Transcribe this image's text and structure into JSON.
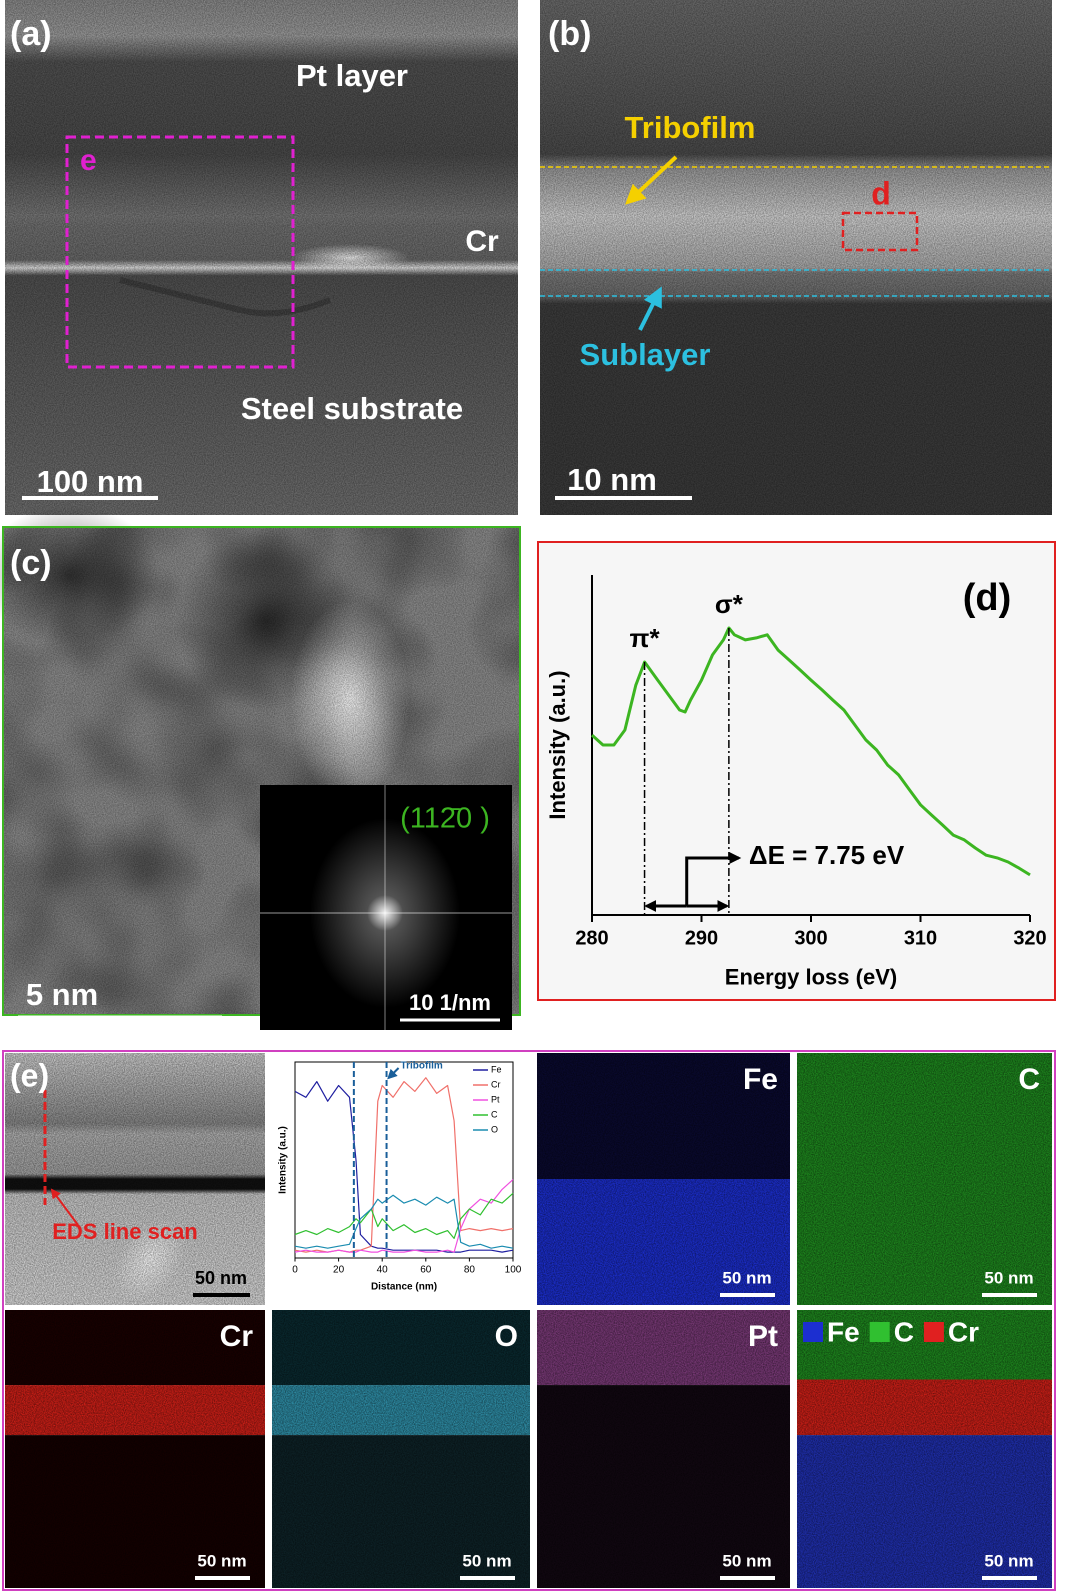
{
  "figure": {
    "a": {
      "label": "(a)",
      "pt_layer": "Pt layer",
      "box": "e",
      "cr": "Cr",
      "substrate": "Steel substrate",
      "scale_bar": "100 nm"
    },
    "b": {
      "label": "(b)",
      "tribofilm": "Tribofilm",
      "box": "d",
      "sublayer": "Sublayer",
      "scale_bar": "10 nm"
    },
    "c": {
      "label": "(c)",
      "fft_index": "(112̄0 )",
      "scale_bar": "5 nm",
      "fft_scale_bar": "10 1/nm"
    },
    "e": {
      "label": "(e)",
      "line_scan": "EDS line scan",
      "scale_bar": "50 nm",
      "maps": [
        {
          "element": "Fe",
          "scale_bar": "50 nm"
        },
        {
          "element": "C",
          "scale_bar": "50 nm"
        },
        {
          "element": "Cr",
          "scale_bar": "50 nm"
        },
        {
          "element": "O",
          "scale_bar": "50 nm"
        },
        {
          "element": "Pt",
          "scale_bar": "50 nm"
        }
      ],
      "overlay": {
        "legend": [
          "Fe",
          "C",
          "Cr"
        ],
        "scale_bar": "50 nm"
      }
    }
  },
  "chart_data": [
    {
      "type": "line",
      "title": "(d)",
      "xlabel": "Energy loss (eV)",
      "ylabel": "Intensity (a.u.)",
      "xlim": [
        280,
        320
      ],
      "xticks": [
        280,
        290,
        300,
        310,
        320
      ],
      "ylim": [
        0,
        100
      ],
      "x": [
        280,
        281,
        282,
        283,
        284,
        284.8,
        286,
        287,
        288,
        288.5,
        289,
        290,
        291,
        292,
        292.5,
        293,
        294,
        295,
        296,
        297,
        298,
        299,
        300,
        301,
        302,
        303,
        304,
        305,
        306,
        307,
        308,
        309,
        310,
        311,
        312,
        313,
        314,
        315,
        316,
        317,
        318,
        319,
        320
      ],
      "series": [
        {
          "color": "#3cb521",
          "values": [
            52.9,
            50,
            50,
            54.4,
            67.6,
            74.4,
            69.1,
            64.7,
            60.3,
            59.7,
            63.2,
            69.1,
            76.5,
            80.9,
            84.4,
            82.4,
            80.9,
            81.5,
            82.4,
            77.9,
            75,
            72.1,
            69.1,
            66.2,
            63.2,
            60.3,
            55.9,
            51.5,
            48.5,
            44.1,
            41.2,
            36.8,
            32.4,
            29.4,
            26.5,
            23.5,
            22.1,
            19.7,
            17.6,
            16.8,
            15.6,
            13.8,
            11.8
          ]
        }
      ],
      "annotations": [
        {
          "text": "π*",
          "x": 284.8
        },
        {
          "text": "σ*",
          "x": 292.5
        },
        {
          "text": "ΔE = 7.75 eV"
        }
      ]
    },
    {
      "type": "line",
      "xlabel": "Distance (nm)",
      "ylabel": "Intensity (a.u.)",
      "xlim": [
        0,
        100
      ],
      "xticks": [
        0,
        20,
        40,
        60,
        80,
        100
      ],
      "ylim": [
        0,
        100
      ],
      "x": [
        0,
        5,
        10,
        15,
        20,
        25,
        28,
        30,
        35,
        38,
        40,
        45,
        50,
        55,
        60,
        65,
        70,
        73,
        76,
        80,
        85,
        90,
        95,
        100
      ],
      "series": [
        {
          "name": "Fe",
          "color": "#1f1fa0",
          "values": [
            85,
            82,
            90,
            80,
            88,
            82,
            50,
            12,
            6,
            5,
            5,
            4,
            4,
            4,
            4,
            4,
            3,
            3,
            3,
            4,
            4,
            4,
            3,
            4
          ]
        },
        {
          "name": "Cr",
          "color": "#f0706a",
          "values": [
            4,
            3,
            4,
            3,
            4,
            3,
            4,
            4,
            6,
            80,
            88,
            82,
            90,
            85,
            92,
            84,
            88,
            70,
            14,
            15,
            14,
            15,
            14,
            15
          ]
        },
        {
          "name": "Pt",
          "color": "#f050e0",
          "values": [
            3,
            4,
            3,
            3,
            4,
            3,
            3,
            4,
            3,
            3,
            4,
            3,
            3,
            4,
            3,
            3,
            4,
            3,
            15,
            25,
            30,
            28,
            35,
            40
          ]
        },
        {
          "name": "C",
          "color": "#30c030",
          "values": [
            12,
            14,
            12,
            15,
            13,
            16,
            20,
            18,
            25,
            16,
            20,
            14,
            17,
            13,
            15,
            12,
            14,
            10,
            20,
            25,
            22,
            30,
            28,
            33
          ]
        },
        {
          "name": "O",
          "color": "#1a8cb0",
          "values": [
            6,
            5,
            6,
            5,
            6,
            7,
            15,
            20,
            25,
            30,
            28,
            32,
            28,
            30,
            27,
            31,
            28,
            30,
            8,
            6,
            7,
            5,
            6,
            5
          ]
        }
      ],
      "annotations": [
        {
          "text": "Tribofilm",
          "x": [
            27,
            42
          ]
        }
      ]
    }
  ]
}
